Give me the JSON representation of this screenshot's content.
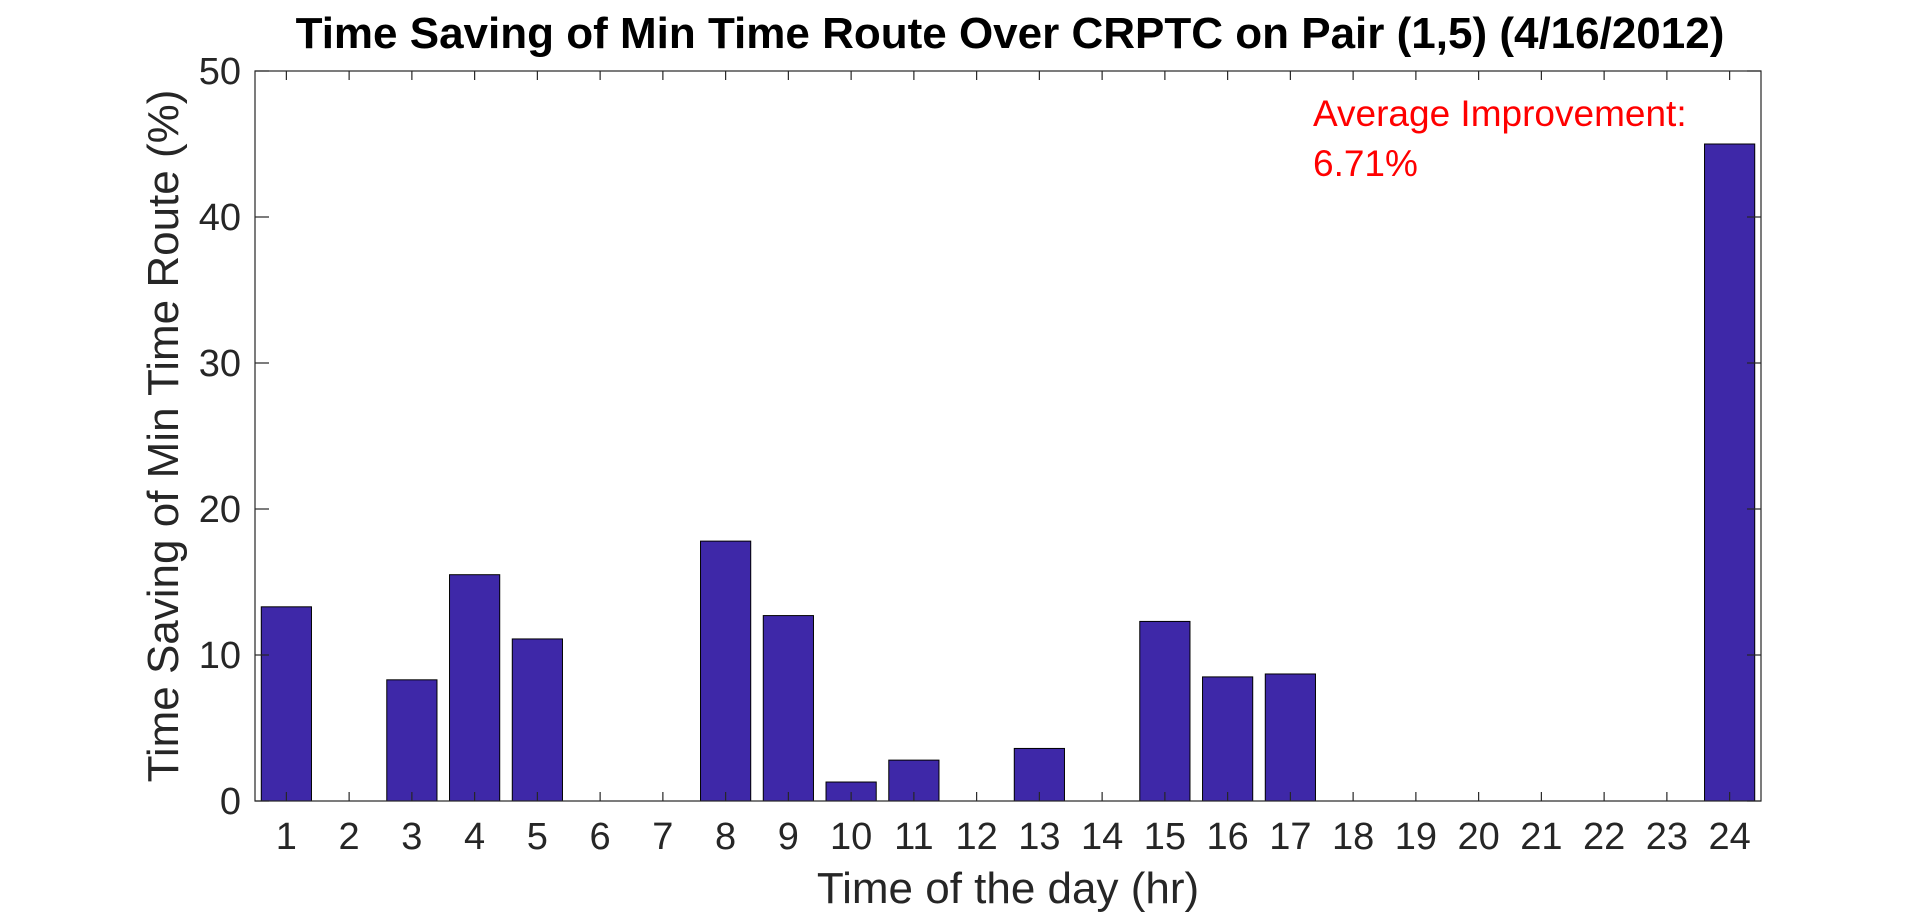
{
  "chart_data": {
    "type": "bar",
    "title": "Time Saving of Min Time Route Over CRPTC on Pair (1,5) (4/16/2012)",
    "xlabel": "Time of the day (hr)",
    "ylabel": "Time Saving of Min Time Route  (%)",
    "categories": [
      "1",
      "2",
      "3",
      "4",
      "5",
      "6",
      "7",
      "8",
      "9",
      "10",
      "11",
      "12",
      "13",
      "14",
      "15",
      "16",
      "17",
      "18",
      "19",
      "20",
      "21",
      "22",
      "23",
      "24"
    ],
    "values": [
      13.3,
      0,
      8.3,
      15.5,
      11.1,
      0,
      0,
      17.8,
      12.7,
      1.3,
      2.8,
      0,
      3.6,
      0,
      12.3,
      8.5,
      8.7,
      0,
      0,
      0,
      0,
      0,
      0,
      45.0
    ],
    "ylim": [
      0,
      50
    ],
    "yticks": [
      0,
      10,
      20,
      30,
      40,
      50
    ],
    "xlim": [
      0.5,
      24.5
    ],
    "grid": false,
    "bar_color": "#3e28a8",
    "annotation": {
      "line1": "Average Improvement:",
      "line2": "6.71%",
      "color": "#ff0000"
    }
  }
}
